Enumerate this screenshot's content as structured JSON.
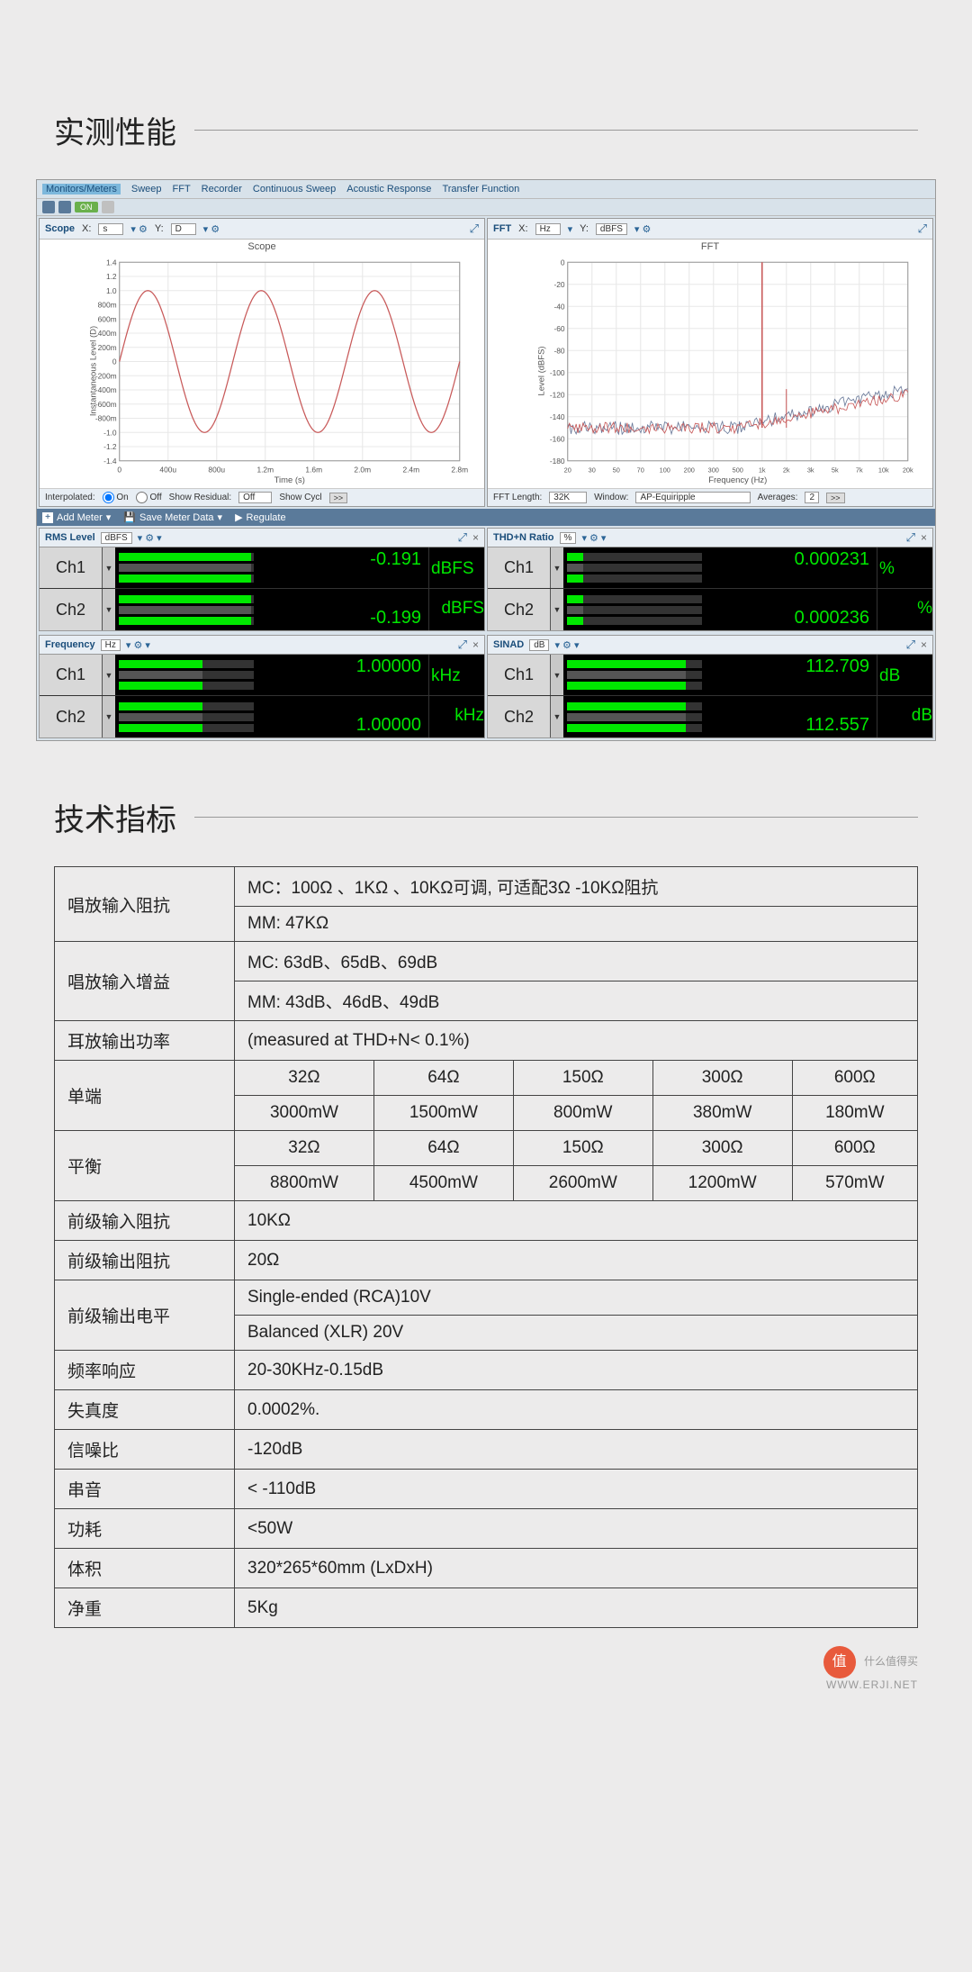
{
  "section1_title": "实测性能",
  "section2_title": "技术指标",
  "menubar": [
    "Monitors/Meters",
    "Sweep",
    "FFT",
    "Recorder",
    "Continuous Sweep",
    "Acoustic Response",
    "Transfer Function"
  ],
  "toolbar_on": "ON",
  "scope": {
    "name": "Scope",
    "x_label": "X:",
    "x_unit": "s",
    "y_label": "Y:",
    "y_unit": "D",
    "title": "Scope",
    "ylabel_axis": "Instantaneous Level (D)",
    "xlabel_axis": "Time (s)",
    "yticks": [
      "1.4",
      "1.2",
      "1.0",
      "800m",
      "600m",
      "400m",
      "200m",
      "0",
      "-200m",
      "-400m",
      "-600m",
      "-800m",
      "-1.0",
      "-1.2",
      "-1.4"
    ],
    "xticks": [
      "0",
      "400u",
      "800u",
      "1.2m",
      "1.6m",
      "2.0m",
      "2.4m",
      "2.8m"
    ],
    "footer": {
      "interp": "Interpolated:",
      "on": "On",
      "off": "Off",
      "show_resid": "Show Residual:",
      "resid_val": "Off",
      "show_cycle": "Show Cycl",
      "btn": ">>"
    },
    "line_color": "#c85a5a",
    "grid_color": "#e8e8e8"
  },
  "fft": {
    "name": "FFT",
    "x_label": "X:",
    "x_unit": "Hz",
    "y_label": "Y:",
    "y_unit": "dBFS",
    "title": "FFT",
    "ylabel_axis": "Level (dBFS)",
    "xlabel_axis": "Frequency (Hz)",
    "yticks": [
      "0",
      "-20",
      "-40",
      "-60",
      "-80",
      "-100",
      "-120",
      "-140",
      "-160",
      "-180"
    ],
    "xticks": [
      "20",
      "30",
      "50",
      "70",
      "100",
      "200",
      "300",
      "500",
      "1k",
      "2k",
      "3k",
      "5k",
      "7k",
      "10k",
      "20k"
    ],
    "footer": {
      "len": "FFT Length:",
      "len_val": "32K",
      "win": "Window:",
      "win_val": "AP-Equiripple",
      "avg": "Averages:",
      "avg_val": "2",
      "btn": ">>"
    },
    "line_color": "#c85a5a",
    "line_color2": "#6a7a9a",
    "grid_color": "#e8e8e8"
  },
  "meter_toolbar": {
    "add": "Add Meter",
    "save": "Save Meter Data",
    "reg": "Regulate"
  },
  "meters": {
    "rms": {
      "title": "RMS Level",
      "unit_sel": "dBFS",
      "ch1": {
        "label": "Ch1",
        "value": "-0.191",
        "unit": "dBFS",
        "fill": 98,
        "top": true
      },
      "ch2": {
        "label": "Ch2",
        "value": "-0.199",
        "unit": "dBFS",
        "fill": 98,
        "top": false
      }
    },
    "thd": {
      "title": "THD+N Ratio",
      "unit_sel": "%",
      "ch1": {
        "label": "Ch1",
        "value": "0.000231",
        "unit": "%",
        "fill": 12,
        "top": true
      },
      "ch2": {
        "label": "Ch2",
        "value": "0.000236",
        "unit": "%",
        "fill": 12,
        "top": false
      }
    },
    "freq": {
      "title": "Frequency",
      "unit_sel": "Hz",
      "ch1": {
        "label": "Ch1",
        "value": "1.00000",
        "unit": "kHz",
        "fill": 62,
        "top": true
      },
      "ch2": {
        "label": "Ch2",
        "value": "1.00000",
        "unit": "kHz",
        "fill": 62,
        "top": false
      }
    },
    "sinad": {
      "title": "SINAD",
      "unit_sel": "dB",
      "ch1": {
        "label": "Ch1",
        "value": "112.709",
        "unit": "dB",
        "fill": 88,
        "top": true
      },
      "ch2": {
        "label": "Ch2",
        "value": "112.557",
        "unit": "dB",
        "fill": 88,
        "top": false
      }
    }
  },
  "specs": {
    "r1": {
      "label": "唱放输入阻抗",
      "v1": "MC：100Ω 、1KΩ 、10KΩ可调, 可适配3Ω -10KΩ阻抗",
      "v2": "MM: 47KΩ"
    },
    "r2": {
      "label": "唱放输入增益",
      "v1": "MC:  63dB、65dB、69dB",
      "v2": "MM:  43dB、46dB、49dB"
    },
    "r3": {
      "label": "耳放输出功率",
      "v1": "(measured at THD+N< 0.1%)"
    },
    "r4": {
      "label": "单端",
      "head": [
        "32Ω",
        "64Ω",
        "150Ω",
        "300Ω",
        "600Ω"
      ],
      "vals": [
        "3000mW",
        "1500mW",
        "800mW",
        "380mW",
        "180mW"
      ]
    },
    "r5": {
      "label": "平衡",
      "head": [
        "32Ω",
        "64Ω",
        "150Ω",
        "300Ω",
        "600Ω"
      ],
      "vals": [
        "8800mW",
        "4500mW",
        "2600mW",
        "1200mW",
        "570mW"
      ]
    },
    "r6": {
      "label": "前级输入阻抗",
      "v1": "10KΩ"
    },
    "r7": {
      "label": "前级输出阻抗",
      "v1": "20Ω"
    },
    "r8": {
      "label": "前级输出电平",
      "v1": "Single-ended (RCA)10V",
      "v2": "Balanced (XLR) 20V"
    },
    "r9": {
      "label": "频率响应",
      "v1": "20-30KHz-0.15dB"
    },
    "r10": {
      "label": "失真度",
      "v1": "0.0002%."
    },
    "r11": {
      "label": "信噪比",
      "v1": "-120dB"
    },
    "r12": {
      "label": "串音",
      "v1": "< -110dB"
    },
    "r13": {
      "label": "功耗",
      "v1": "<50W"
    },
    "r14": {
      "label": "体积",
      "v1": "320*265*60mm (LxDxH)"
    },
    "r15": {
      "label": "净重",
      "v1": "5Kg"
    }
  },
  "watermark": {
    "badge": "值",
    "text1": "什么值得买",
    "text2": "WWW.ERJI.NET"
  }
}
